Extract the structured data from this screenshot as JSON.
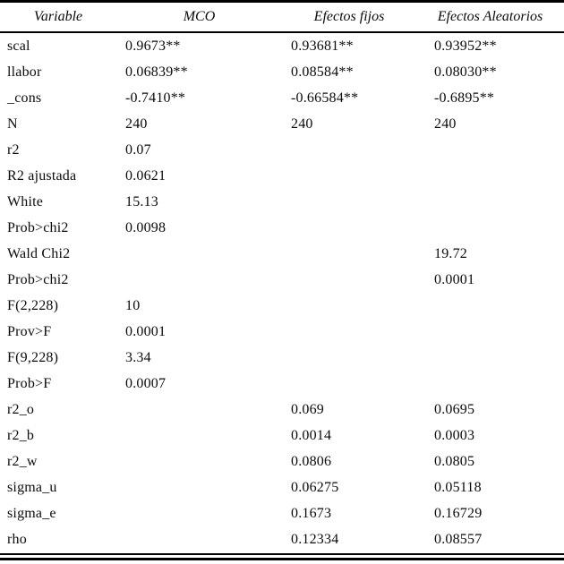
{
  "table": {
    "columns": [
      {
        "label": "Variable"
      },
      {
        "label": "MCO"
      },
      {
        "label": "Efectos fijos"
      },
      {
        "label": "Efectos Aleatorios"
      }
    ],
    "rows": [
      {
        "variable": "scal",
        "mco": "0.9673**",
        "efectos_fijos": "0.93681**",
        "efectos_aleatorios": "0.93952**"
      },
      {
        "variable": "llabor",
        "mco": "0.06839**",
        "efectos_fijos": "0.08584**",
        "efectos_aleatorios": "0.08030**"
      },
      {
        "variable": "_cons",
        "mco": "-0.7410**",
        "efectos_fijos": "-0.66584**",
        "efectos_aleatorios": "-0.6895**"
      },
      {
        "variable": "N",
        "mco": "240",
        "efectos_fijos": "240",
        "efectos_aleatorios": "240"
      },
      {
        "variable": "r2",
        "mco": "0.07",
        "efectos_fijos": "",
        "efectos_aleatorios": ""
      },
      {
        "variable": "R2 ajustada",
        "mco": "0.0621",
        "efectos_fijos": "",
        "efectos_aleatorios": ""
      },
      {
        "variable": "White",
        "mco": "15.13",
        "efectos_fijos": "",
        "efectos_aleatorios": ""
      },
      {
        "variable": "Prob>chi2",
        "mco": "0.0098",
        "efectos_fijos": "",
        "efectos_aleatorios": ""
      },
      {
        "variable": "Wald Chi2",
        "mco": "",
        "efectos_fijos": "",
        "efectos_aleatorios": "19.72"
      },
      {
        "variable": "Prob>chi2",
        "mco": "",
        "efectos_fijos": "",
        "efectos_aleatorios": "0.0001"
      },
      {
        "variable": "F(2,228)",
        "mco": "10",
        "efectos_fijos": "",
        "efectos_aleatorios": ""
      },
      {
        "variable": "Prov>F",
        "mco": "0.0001",
        "efectos_fijos": "",
        "efectos_aleatorios": ""
      },
      {
        "variable": "F(9,228)",
        "mco": "3.34",
        "efectos_fijos": "",
        "efectos_aleatorios": ""
      },
      {
        "variable": "Prob>F",
        "mco": "0.0007",
        "efectos_fijos": "",
        "efectos_aleatorios": ""
      },
      {
        "variable": "r2_o",
        "mco": "",
        "efectos_fijos": "0.069",
        "efectos_aleatorios": "0.0695"
      },
      {
        "variable": "r2_b",
        "mco": "",
        "efectos_fijos": "0.0014",
        "efectos_aleatorios": "0.0003"
      },
      {
        "variable": "r2_w",
        "mco": "",
        "efectos_fijos": "0.0806",
        "efectos_aleatorios": "0.0805"
      },
      {
        "variable": "sigma_u",
        "mco": "",
        "efectos_fijos": "0.06275",
        "efectos_aleatorios": "0.05118"
      },
      {
        "variable": "sigma_e",
        "mco": "",
        "efectos_fijos": "0.1673",
        "efectos_aleatorios": "0.16729"
      },
      {
        "variable": "rho",
        "mco": "",
        "efectos_fijos": "0.12334",
        "efectos_aleatorios": "0.08557"
      }
    ]
  }
}
